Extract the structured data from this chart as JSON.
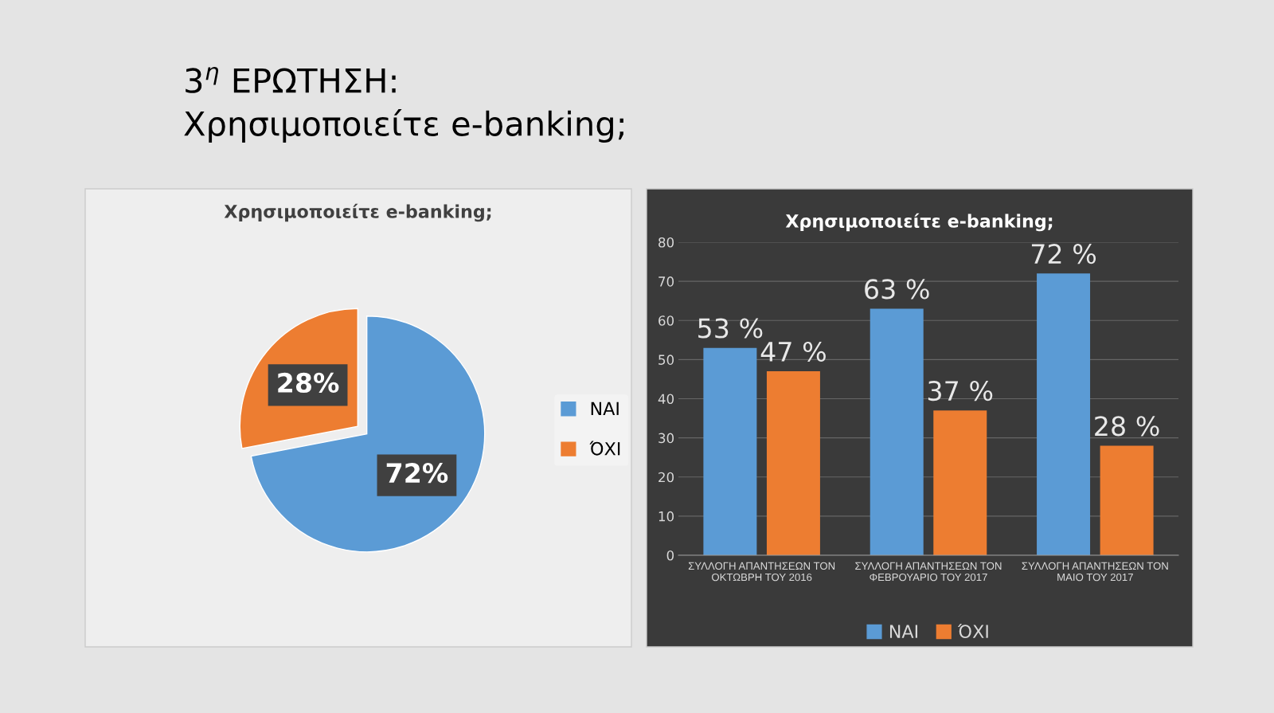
{
  "chart_data": [
    {
      "type": "other",
      "title": "3$^{η}$ ΕΡΩΤΗΣΗ:",
      "subtitle": "Χρησιμοποιείτε e-banking;"
    },
    {
      "type": "pie",
      "title": "Χρησιμοποιείτε e-banking;",
      "categories": [
        "ΝΑΙ",
        "ΌΧΙ"
      ],
      "values": [
        72,
        28
      ],
      "colors": [
        "#5b9bd5",
        "#ed7d31"
      ],
      "value_labels": [
        "72%",
        "28%"
      ],
      "legend": "right"
    },
    {
      "type": "bar",
      "title": "Χρησιμοποιείτε e-banking;",
      "categories": [
        "ΣΥΛΛΟΓΗ ΑΠΑΝΤΗΣΕΩΝ ΤΟΝ\nΟΚΤΩΒΡΗ ΤΟΥ 2016",
        "ΣΥΛΛΟΓΗ ΑΠΑΝΤΗΣΕΩΝ ΤΟΝ\nΦΕΒΡΟΥΑΡΙΟ ΤΟΥ 2017",
        "ΣΥΛΛΟΓΗ ΑΠΑΝΤΗΣΕΩΝ ΤΟΝ\nΜΑΙΟ ΤΟΥ 2017"
      ],
      "series": [
        {
          "name": "ΝΑΙ",
          "color": "#5b9bd5",
          "values": [
            53,
            63,
            72
          ],
          "value_labels": [
            "53 %",
            "63 %",
            "72 %"
          ]
        },
        {
          "name": "ΌΧΙ",
          "color": "#ed7d31",
          "values": [
            47,
            37,
            28
          ],
          "value_labels": [
            "47 %",
            "37 %",
            "28 %"
          ]
        }
      ],
      "ylim": [
        0,
        80
      ],
      "yticks": [
        0,
        10,
        20,
        30,
        40,
        50,
        60,
        70,
        80
      ],
      "grid": "y",
      "legend": "bottom"
    }
  ]
}
